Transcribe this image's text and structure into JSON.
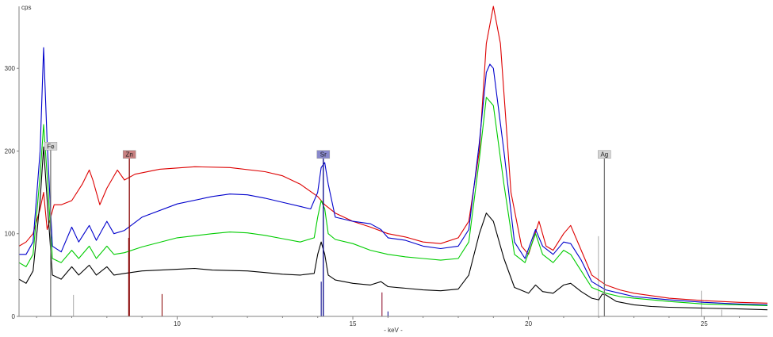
{
  "chart_data": {
    "type": "line",
    "title": "",
    "xlabel": "- keV -",
    "ylabel": "cps",
    "xlim": [
      5.5,
      26.8
    ],
    "ylim": [
      0,
      375
    ],
    "x_ticks": [
      10,
      15,
      20,
      25
    ],
    "y_ticks": [
      0,
      100,
      200,
      300
    ],
    "grid": false,
    "legend": "none",
    "series": [
      {
        "color": "#dd0000",
        "points": [
          [
            5.5,
            85
          ],
          [
            5.7,
            90
          ],
          [
            5.9,
            100
          ],
          [
            6.1,
            130
          ],
          [
            6.2,
            150
          ],
          [
            6.3,
            105
          ],
          [
            6.5,
            135
          ],
          [
            6.7,
            135
          ],
          [
            7.0,
            140
          ],
          [
            7.3,
            160
          ],
          [
            7.5,
            177
          ],
          [
            7.6,
            165
          ],
          [
            7.8,
            135
          ],
          [
            8.0,
            155
          ],
          [
            8.3,
            177
          ],
          [
            8.5,
            165
          ],
          [
            8.8,
            172
          ],
          [
            9.5,
            178
          ],
          [
            10.5,
            181
          ],
          [
            11.5,
            180
          ],
          [
            12.5,
            175
          ],
          [
            13.0,
            170
          ],
          [
            13.5,
            160
          ],
          [
            14.0,
            145
          ],
          [
            14.2,
            135
          ],
          [
            14.5,
            125
          ],
          [
            15.0,
            115
          ],
          [
            15.5,
            108
          ],
          [
            16.0,
            100
          ],
          [
            16.5,
            96
          ],
          [
            17.0,
            90
          ],
          [
            17.5,
            88
          ],
          [
            18.0,
            95
          ],
          [
            18.3,
            115
          ],
          [
            18.6,
            200
          ],
          [
            18.8,
            330
          ],
          [
            19.0,
            380
          ],
          [
            19.2,
            330
          ],
          [
            19.5,
            150
          ],
          [
            19.8,
            85
          ],
          [
            20.0,
            75
          ],
          [
            20.3,
            115
          ],
          [
            20.5,
            85
          ],
          [
            20.7,
            80
          ],
          [
            21.0,
            100
          ],
          [
            21.2,
            110
          ],
          [
            21.5,
            80
          ],
          [
            21.8,
            50
          ],
          [
            22.2,
            38
          ],
          [
            22.6,
            32
          ],
          [
            23.0,
            28
          ],
          [
            23.5,
            25
          ],
          [
            24.0,
            22
          ],
          [
            25.0,
            19
          ],
          [
            26.0,
            17
          ],
          [
            26.8,
            16
          ]
        ]
      },
      {
        "color": "#0000cc",
        "points": [
          [
            5.5,
            75
          ],
          [
            5.7,
            75
          ],
          [
            5.9,
            90
          ],
          [
            6.1,
            200
          ],
          [
            6.2,
            325
          ],
          [
            6.3,
            210
          ],
          [
            6.45,
            85
          ],
          [
            6.7,
            78
          ],
          [
            7.0,
            108
          ],
          [
            7.2,
            90
          ],
          [
            7.5,
            110
          ],
          [
            7.7,
            92
          ],
          [
            8.0,
            115
          ],
          [
            8.2,
            100
          ],
          [
            8.5,
            104
          ],
          [
            9.0,
            120
          ],
          [
            10.0,
            136
          ],
          [
            11.0,
            145
          ],
          [
            11.5,
            148
          ],
          [
            12.0,
            147
          ],
          [
            12.5,
            143
          ],
          [
            13.0,
            138
          ],
          [
            13.5,
            133
          ],
          [
            13.8,
            130
          ],
          [
            14.0,
            150
          ],
          [
            14.1,
            180
          ],
          [
            14.2,
            186
          ],
          [
            14.3,
            160
          ],
          [
            14.5,
            120
          ],
          [
            15.0,
            115
          ],
          [
            15.5,
            112
          ],
          [
            15.8,
            105
          ],
          [
            16.0,
            95
          ],
          [
            16.5,
            92
          ],
          [
            17.0,
            85
          ],
          [
            17.5,
            82
          ],
          [
            18.0,
            85
          ],
          [
            18.3,
            105
          ],
          [
            18.6,
            210
          ],
          [
            18.8,
            295
          ],
          [
            18.9,
            305
          ],
          [
            19.0,
            300
          ],
          [
            19.3,
            200
          ],
          [
            19.6,
            90
          ],
          [
            19.9,
            70
          ],
          [
            20.2,
            105
          ],
          [
            20.4,
            85
          ],
          [
            20.7,
            75
          ],
          [
            21.0,
            90
          ],
          [
            21.2,
            88
          ],
          [
            21.5,
            68
          ],
          [
            21.8,
            42
          ],
          [
            22.2,
            32
          ],
          [
            22.6,
            28
          ],
          [
            23.0,
            24
          ],
          [
            23.5,
            22
          ],
          [
            24.0,
            20
          ],
          [
            25.0,
            17
          ],
          [
            26.0,
            15
          ],
          [
            26.8,
            14
          ]
        ]
      },
      {
        "color": "#00cc00",
        "points": [
          [
            5.5,
            65
          ],
          [
            5.7,
            60
          ],
          [
            5.9,
            75
          ],
          [
            6.1,
            170
          ],
          [
            6.2,
            232
          ],
          [
            6.3,
            170
          ],
          [
            6.45,
            70
          ],
          [
            6.7,
            65
          ],
          [
            7.0,
            80
          ],
          [
            7.2,
            70
          ],
          [
            7.5,
            85
          ],
          [
            7.7,
            70
          ],
          [
            8.0,
            85
          ],
          [
            8.2,
            75
          ],
          [
            8.5,
            77
          ],
          [
            9.0,
            84
          ],
          [
            10.0,
            95
          ],
          [
            11.0,
            100
          ],
          [
            11.5,
            102
          ],
          [
            12.0,
            101
          ],
          [
            12.5,
            98
          ],
          [
            13.0,
            94
          ],
          [
            13.5,
            90
          ],
          [
            13.9,
            95
          ],
          [
            14.0,
            120
          ],
          [
            14.1,
            140
          ],
          [
            14.2,
            130
          ],
          [
            14.3,
            100
          ],
          [
            14.5,
            93
          ],
          [
            15.0,
            88
          ],
          [
            15.5,
            80
          ],
          [
            16.0,
            75
          ],
          [
            16.5,
            72
          ],
          [
            17.0,
            70
          ],
          [
            17.5,
            68
          ],
          [
            18.0,
            70
          ],
          [
            18.3,
            90
          ],
          [
            18.6,
            190
          ],
          [
            18.8,
            265
          ],
          [
            19.0,
            255
          ],
          [
            19.3,
            160
          ],
          [
            19.6,
            75
          ],
          [
            19.9,
            65
          ],
          [
            20.2,
            100
          ],
          [
            20.4,
            75
          ],
          [
            20.7,
            65
          ],
          [
            21.0,
            80
          ],
          [
            21.2,
            75
          ],
          [
            21.5,
            55
          ],
          [
            21.8,
            35
          ],
          [
            22.2,
            28
          ],
          [
            22.6,
            24
          ],
          [
            23.0,
            22
          ],
          [
            23.5,
            20
          ],
          [
            24.0,
            18
          ],
          [
            25.0,
            15
          ],
          [
            26.0,
            14
          ],
          [
            26.8,
            13
          ]
        ]
      },
      {
        "color": "#000000",
        "points": [
          [
            5.5,
            45
          ],
          [
            5.7,
            40
          ],
          [
            5.9,
            55
          ],
          [
            6.1,
            140
          ],
          [
            6.2,
            205
          ],
          [
            6.3,
            140
          ],
          [
            6.45,
            50
          ],
          [
            6.7,
            45
          ],
          [
            7.0,
            60
          ],
          [
            7.2,
            50
          ],
          [
            7.5,
            62
          ],
          [
            7.7,
            50
          ],
          [
            8.0,
            60
          ],
          [
            8.2,
            50
          ],
          [
            8.5,
            52
          ],
          [
            9.0,
            55
          ],
          [
            10.0,
            57
          ],
          [
            10.5,
            58
          ],
          [
            11.0,
            56
          ],
          [
            12.0,
            55
          ],
          [
            12.5,
            53
          ],
          [
            13.0,
            51
          ],
          [
            13.5,
            50
          ],
          [
            13.9,
            52
          ],
          [
            14.0,
            75
          ],
          [
            14.1,
            90
          ],
          [
            14.2,
            75
          ],
          [
            14.3,
            50
          ],
          [
            14.5,
            44
          ],
          [
            15.0,
            40
          ],
          [
            15.5,
            38
          ],
          [
            15.8,
            42
          ],
          [
            16.0,
            36
          ],
          [
            16.5,
            34
          ],
          [
            17.0,
            32
          ],
          [
            17.5,
            31
          ],
          [
            18.0,
            33
          ],
          [
            18.3,
            50
          ],
          [
            18.6,
            100
          ],
          [
            18.8,
            125
          ],
          [
            19.0,
            115
          ],
          [
            19.3,
            70
          ],
          [
            19.6,
            35
          ],
          [
            20.0,
            28
          ],
          [
            20.2,
            38
          ],
          [
            20.4,
            30
          ],
          [
            20.7,
            28
          ],
          [
            21.0,
            38
          ],
          [
            21.2,
            40
          ],
          [
            21.5,
            30
          ],
          [
            21.8,
            22
          ],
          [
            22.0,
            20
          ],
          [
            22.1,
            27
          ],
          [
            22.2,
            26
          ],
          [
            22.5,
            18
          ],
          [
            23.0,
            14
          ],
          [
            23.5,
            12
          ],
          [
            24.0,
            11
          ],
          [
            25.0,
            10
          ],
          [
            26.0,
            9
          ],
          [
            26.8,
            8
          ]
        ]
      }
    ],
    "element_markers": [
      {
        "label": "Fe",
        "x": 6.4,
        "height": 205,
        "color": "#777777",
        "label_bg": "#d4d4d4"
      },
      {
        "label": "Zn",
        "x": 8.64,
        "height": 195,
        "color": "#880000",
        "label_bg": "#c88080"
      },
      {
        "label": "Sr",
        "x": 14.16,
        "height": 195,
        "color": "#000088",
        "label_bg": "#8888cc"
      },
      {
        "label": "Ag",
        "x": 22.16,
        "height": 195,
        "color": "#777777",
        "label_bg": "#d4d4d4"
      }
    ],
    "reference_lines": [
      {
        "x": 7.05,
        "height": 26,
        "color": "#aaaaaa"
      },
      {
        "x": 8.62,
        "height": 95,
        "color": "#880000"
      },
      {
        "x": 9.57,
        "height": 27,
        "color": "#880000"
      },
      {
        "x": 14.1,
        "height": 42,
        "color": "#000088"
      },
      {
        "x": 15.83,
        "height": 29,
        "color": "#880022"
      },
      {
        "x": 16.0,
        "height": 6,
        "color": "#000088"
      },
      {
        "x": 21.99,
        "height": 97,
        "color": "#aaaaaa"
      },
      {
        "x": 24.92,
        "height": 31,
        "color": "#aaaaaa"
      },
      {
        "x": 25.5,
        "height": 8,
        "color": "#aaaaaa"
      }
    ]
  }
}
